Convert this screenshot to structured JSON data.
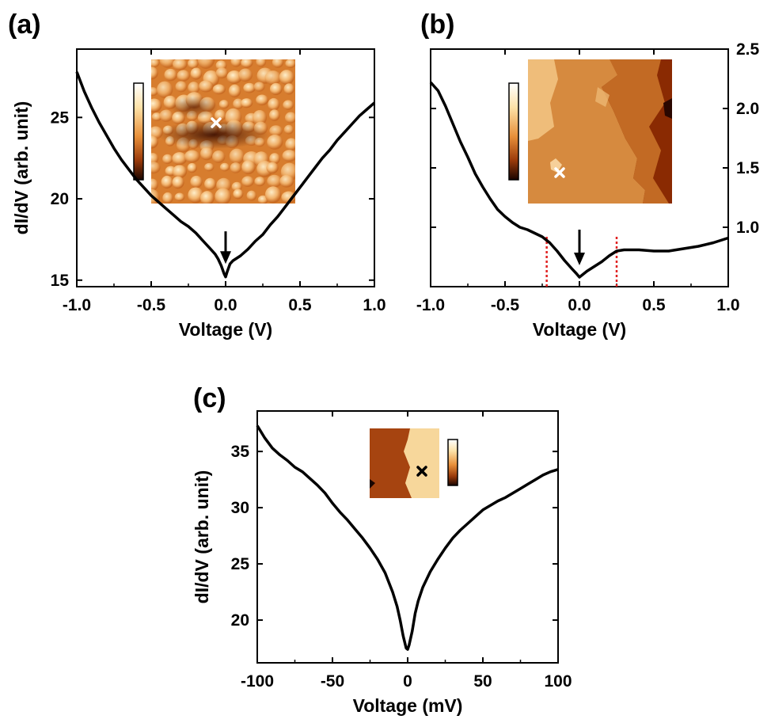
{
  "chart_data": [
    {
      "type": "line",
      "panel_label": "(a)",
      "xlabel": "Voltage (V)",
      "ylabel": "dI/dV (arb. unit)",
      "xlim": [
        -1.0,
        1.0
      ],
      "ylim": [
        14.6,
        29.2
      ],
      "x_ticks": [
        -1.0,
        -0.5,
        0.0,
        0.5,
        1.0
      ],
      "x_tick_labels": [
        "-1.0",
        "-0.5",
        "0.0",
        "0.5",
        "1.0"
      ],
      "y_ticks": [
        15,
        20,
        25
      ],
      "y_tick_labels": [
        "15",
        "20",
        "25"
      ],
      "y_axis_side": "left",
      "annotations": [
        {
          "type": "arrow",
          "x": 0.0,
          "y_from": 18.0,
          "y_to": 16.0
        }
      ],
      "inset": {
        "type": "topography-image",
        "colormap": "afmhot",
        "marker": "white-cross"
      },
      "series": [
        {
          "color": "#000000",
          "x": [
            -1.0,
            -0.95,
            -0.9,
            -0.85,
            -0.8,
            -0.75,
            -0.7,
            -0.65,
            -0.6,
            -0.55,
            -0.5,
            -0.45,
            -0.4,
            -0.35,
            -0.3,
            -0.25,
            -0.2,
            -0.15,
            -0.1,
            -0.07,
            -0.05,
            -0.03,
            -0.01,
            0.0,
            0.01,
            0.03,
            0.05,
            0.1,
            0.15,
            0.2,
            0.25,
            0.3,
            0.35,
            0.4,
            0.45,
            0.5,
            0.55,
            0.6,
            0.65,
            0.7,
            0.75,
            0.8,
            0.85,
            0.9,
            0.95,
            1.0
          ],
          "y": [
            27.8,
            26.6,
            25.6,
            24.7,
            23.9,
            23.1,
            22.4,
            21.8,
            21.2,
            20.7,
            20.2,
            19.8,
            19.4,
            19.0,
            18.6,
            18.3,
            17.9,
            17.4,
            16.9,
            16.6,
            16.3,
            15.9,
            15.4,
            15.2,
            15.5,
            16.0,
            16.2,
            16.5,
            16.9,
            17.4,
            17.8,
            18.4,
            18.9,
            19.5,
            20.1,
            20.7,
            21.3,
            21.9,
            22.5,
            23.0,
            23.6,
            24.1,
            24.6,
            25.1,
            25.5,
            25.9
          ]
        }
      ]
    },
    {
      "type": "line",
      "panel_label": "(b)",
      "xlabel": "Voltage (V)",
      "ylabel": "",
      "xlim": [
        -1.0,
        1.0
      ],
      "ylim": [
        0.5,
        2.5
      ],
      "x_ticks": [
        -1.0,
        -0.5,
        0.0,
        0.5,
        1.0
      ],
      "x_tick_labels": [
        "-1.0",
        "-0.5",
        "0.0",
        "0.5",
        "1.0"
      ],
      "y_ticks": [
        1.0,
        1.5,
        2.0,
        2.5
      ],
      "y_tick_labels": [
        "1.0",
        "1.5",
        "2.0",
        "2.5"
      ],
      "y_axis_side": "right",
      "annotations": [
        {
          "type": "arrow",
          "x": 0.0,
          "y_from": 0.98,
          "y_to": 0.68
        },
        {
          "type": "vline",
          "x": -0.22,
          "style": "dotted",
          "color": "#e02020"
        },
        {
          "type": "vline",
          "x": 0.25,
          "style": "dotted",
          "color": "#e02020"
        }
      ],
      "inset": {
        "type": "topography-image",
        "colormap": "afmhot",
        "marker": "white-cross"
      },
      "series": [
        {
          "color": "#000000",
          "x": [
            -1.0,
            -0.95,
            -0.9,
            -0.85,
            -0.8,
            -0.75,
            -0.7,
            -0.65,
            -0.6,
            -0.55,
            -0.5,
            -0.45,
            -0.4,
            -0.35,
            -0.3,
            -0.25,
            -0.2,
            -0.15,
            -0.1,
            -0.05,
            -0.02,
            0.0,
            0.02,
            0.05,
            0.1,
            0.15,
            0.2,
            0.25,
            0.3,
            0.4,
            0.5,
            0.6,
            0.7,
            0.8,
            0.9,
            1.0
          ],
          "y": [
            2.22,
            2.15,
            2.02,
            1.87,
            1.72,
            1.59,
            1.45,
            1.34,
            1.24,
            1.15,
            1.09,
            1.04,
            1.0,
            0.98,
            0.95,
            0.92,
            0.87,
            0.8,
            0.72,
            0.65,
            0.61,
            0.58,
            0.6,
            0.63,
            0.67,
            0.71,
            0.76,
            0.8,
            0.81,
            0.81,
            0.8,
            0.8,
            0.82,
            0.84,
            0.87,
            0.91
          ]
        }
      ]
    },
    {
      "type": "line",
      "panel_label": "(c)",
      "xlabel": "Voltage (mV)",
      "ylabel": "dI/dV (arb. unit)",
      "xlim": [
        -100,
        100
      ],
      "ylim": [
        16.2,
        38.6
      ],
      "x_ticks": [
        -100,
        -50,
        0,
        50,
        100
      ],
      "x_tick_labels": [
        "-100",
        "-50",
        "0",
        "50",
        "100"
      ],
      "y_ticks": [
        20,
        25,
        30,
        35
      ],
      "y_tick_labels": [
        "20",
        "25",
        "30",
        "35"
      ],
      "y_axis_side": "left",
      "annotations": [],
      "inset": {
        "type": "topography-image",
        "colormap": "afmhot",
        "marker": "black-cross"
      },
      "series": [
        {
          "color": "#000000",
          "x": [
            -100,
            -95,
            -90,
            -85,
            -80,
            -75,
            -70,
            -65,
            -60,
            -55,
            -50,
            -45,
            -40,
            -35,
            -30,
            -25,
            -20,
            -15,
            -10,
            -7,
            -5,
            -3,
            -1,
            0,
            1,
            3,
            5,
            7,
            10,
            15,
            20,
            25,
            30,
            35,
            40,
            45,
            50,
            55,
            60,
            65,
            70,
            75,
            80,
            85,
            90,
            95,
            100
          ],
          "y": [
            37.3,
            36.2,
            35.3,
            34.7,
            34.2,
            33.6,
            33.2,
            32.6,
            32.0,
            31.3,
            30.4,
            29.6,
            28.9,
            28.1,
            27.3,
            26.4,
            25.4,
            24.2,
            22.5,
            21.2,
            20.0,
            18.6,
            17.5,
            17.4,
            17.8,
            19.0,
            20.6,
            21.7,
            22.9,
            24.3,
            25.4,
            26.4,
            27.3,
            28.0,
            28.6,
            29.2,
            29.8,
            30.2,
            30.6,
            30.9,
            31.3,
            31.7,
            32.1,
            32.5,
            32.9,
            33.2,
            33.4
          ]
        }
      ]
    }
  ]
}
